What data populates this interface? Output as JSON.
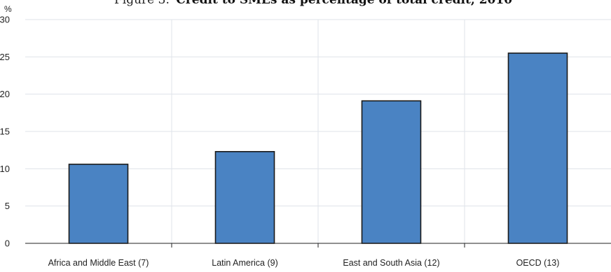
{
  "chart_data": {
    "type": "bar",
    "title_prefix": "Figure 3.",
    "title": "Credit to SMEs as percentage of total credit, 2010",
    "ylabel": "%",
    "xlabel": "",
    "categories": [
      "Africa and Middle East (7)",
      "Latin America (9)",
      "East and South Asia (12)",
      "OECD (13)"
    ],
    "values": [
      10.6,
      12.3,
      19.1,
      25.5
    ],
    "ylim": [
      0,
      30
    ],
    "yticks": [
      0,
      5,
      10,
      15,
      20,
      25,
      30
    ],
    "grid": true,
    "bar_color": "#4a83c3",
    "bar_edge_color": "#1a1a1a",
    "grid_color": "#dfe3ea",
    "plot_background": "#ffffff",
    "legend": "none"
  }
}
